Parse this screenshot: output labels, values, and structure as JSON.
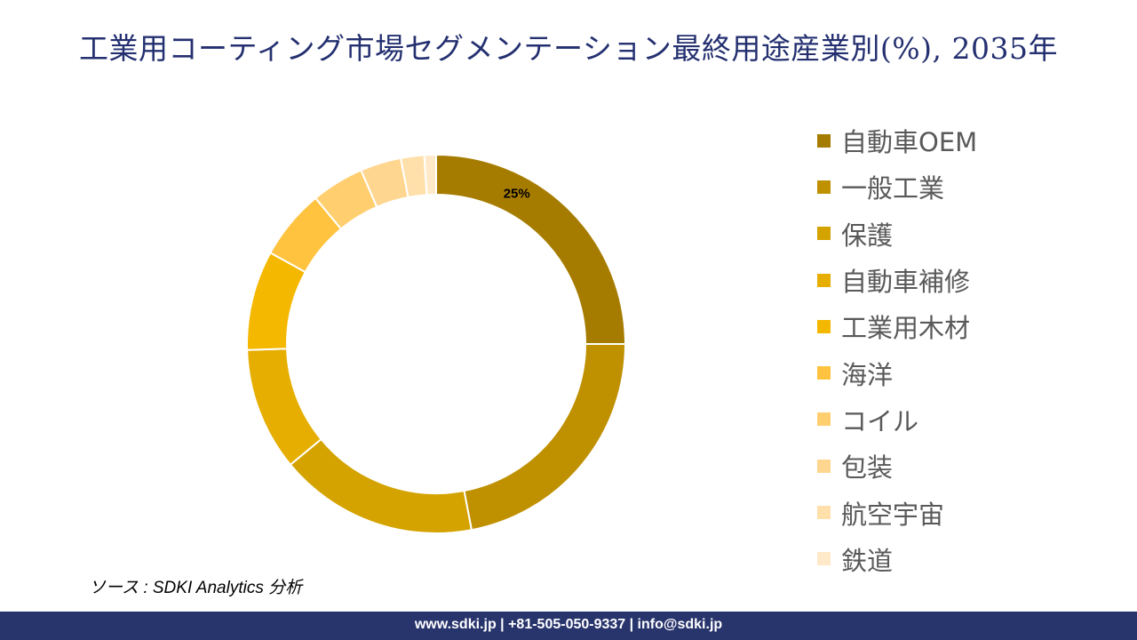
{
  "title": "工業用コーティング市場セグメンテーション最終用途産業別(%), 2035年",
  "chart_data": {
    "type": "pie",
    "donut": true,
    "title": "工業用コーティング市場セグメンテーション最終用途産業別(%), 2035年",
    "categories": [
      "自動車OEM",
      "一般工業",
      "保護",
      "自動車補修",
      "工業用木材",
      "海洋",
      "コイル",
      "包装",
      "航空宇宙",
      "鉄道"
    ],
    "values": [
      25,
      22,
      17,
      10.5,
      8.5,
      6,
      4.5,
      3.5,
      2,
      1
    ],
    "colors": [
      "#a67c00",
      "#bf9000",
      "#d4a300",
      "#e6ae00",
      "#f5b800",
      "#ffc340",
      "#ffcf6f",
      "#ffd690",
      "#ffe0aa",
      "#ffe9c8"
    ],
    "data_labels": [
      {
        "category": "自動車OEM",
        "text": "25%"
      }
    ],
    "legend_position": "right"
  },
  "source": "ソース : SDKI Analytics  分析",
  "footer": "www.sdki.jp | +81-505-050-9337 | info@sdki.jp"
}
